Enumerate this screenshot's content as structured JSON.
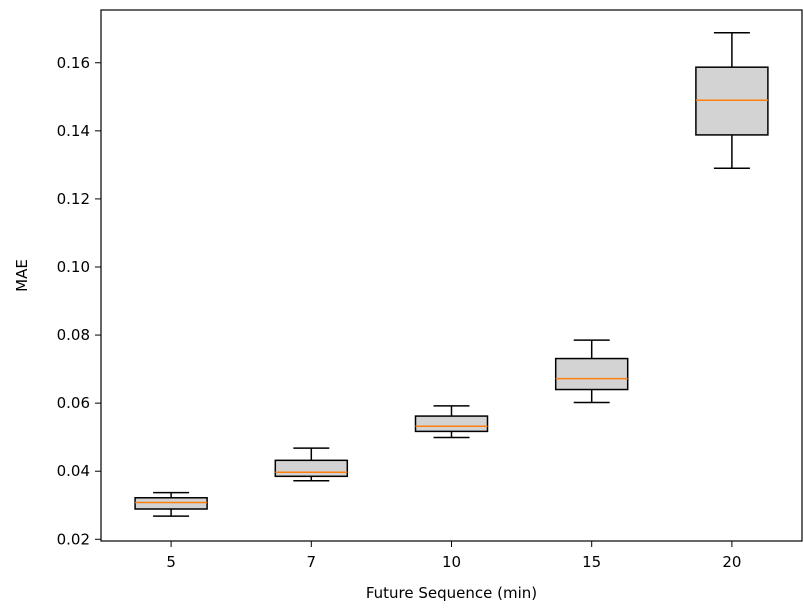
{
  "chart_data": {
    "type": "boxplot",
    "title": "",
    "xlabel": "Future Sequence (min)",
    "ylabel": "MAE",
    "categories": [
      "5",
      "7",
      "10",
      "15",
      "20"
    ],
    "boxes": [
      {
        "category": "5",
        "whisker_low": 0.0268,
        "q1": 0.0289,
        "median": 0.0308,
        "q3": 0.0322,
        "whisker_high": 0.0337
      },
      {
        "category": "7",
        "whisker_low": 0.0372,
        "q1": 0.0385,
        "median": 0.0397,
        "q3": 0.0432,
        "whisker_high": 0.0468
      },
      {
        "category": "10",
        "whisker_low": 0.0499,
        "q1": 0.0517,
        "median": 0.0532,
        "q3": 0.0562,
        "whisker_high": 0.0592
      },
      {
        "category": "15",
        "whisker_low": 0.0602,
        "q1": 0.064,
        "median": 0.0672,
        "q3": 0.0731,
        "whisker_high": 0.0785
      },
      {
        "category": "20",
        "whisker_low": 0.129,
        "q1": 0.1388,
        "median": 0.149,
        "q3": 0.1587,
        "whisker_high": 0.1688
      }
    ],
    "ylim": [
      0.0195,
      0.1755
    ],
    "yticks": [
      0.02,
      0.04,
      0.06,
      0.08,
      0.1,
      0.12,
      0.14,
      0.16
    ],
    "ytick_labels": [
      "0.02",
      "0.04",
      "0.06",
      "0.08",
      "0.10",
      "0.12",
      "0.14",
      "0.16"
    ],
    "grid": false,
    "colors": {
      "box_fill": "#d3d3d3",
      "box_edge": "#000000",
      "median": "#ff7f0e",
      "axis": "#000000"
    }
  }
}
